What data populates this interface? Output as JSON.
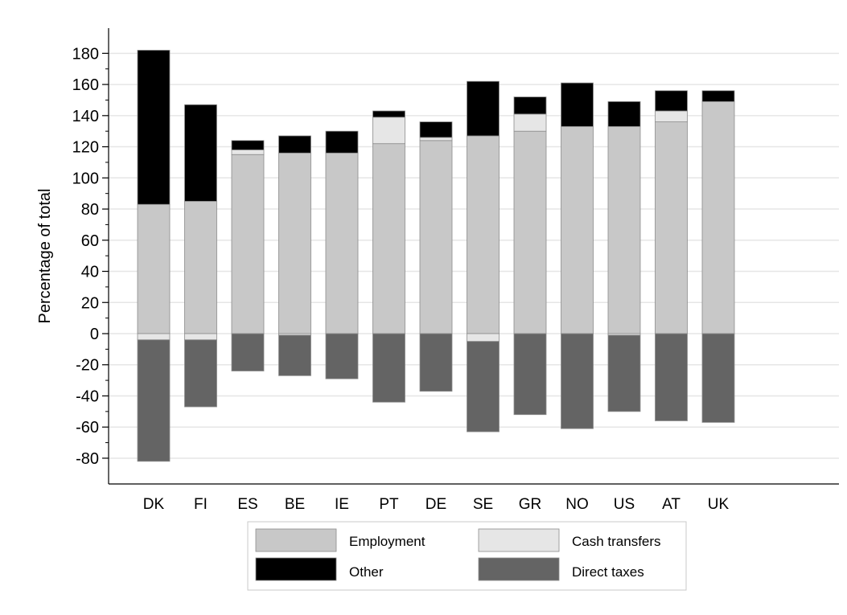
{
  "chart_data": {
    "type": "bar",
    "stacked": true,
    "title": "",
    "xlabel": "",
    "ylabel": "Percentage of total",
    "ylim": [
      -95,
      195
    ],
    "yticks": [
      -80,
      -60,
      -40,
      -20,
      0,
      20,
      40,
      60,
      80,
      100,
      120,
      140,
      160,
      180
    ],
    "grid": true,
    "legend_position": "bottom",
    "categories": [
      "DK",
      "FI",
      "ES",
      "BE",
      "IE",
      "PT",
      "DE",
      "SE",
      "GR",
      "NO",
      "US",
      "AT",
      "UK"
    ],
    "series": [
      {
        "name": "Employment",
        "color": "#c8c8c8",
        "positive": [
          83,
          85,
          115,
          116,
          116,
          122,
          124,
          127,
          130,
          133,
          133,
          136,
          149
        ],
        "negative": [
          0,
          0,
          0,
          0,
          0,
          0,
          0,
          0,
          0,
          0,
          0,
          0,
          0
        ]
      },
      {
        "name": "Cash transfers",
        "color": "#e6e6e6",
        "positive": [
          0,
          0,
          3,
          0,
          0,
          17,
          2,
          0,
          11,
          0,
          0,
          7,
          0
        ],
        "negative": [
          -4,
          -4,
          0,
          -1,
          0,
          0,
          0,
          -5,
          0,
          0,
          -1,
          0,
          0
        ]
      },
      {
        "name": "Other",
        "color": "#000000",
        "positive": [
          99,
          62,
          6,
          11,
          14,
          4,
          10,
          35,
          11,
          28,
          16,
          13,
          7
        ],
        "negative": [
          0,
          0,
          0,
          0,
          0,
          0,
          0,
          0,
          0,
          0,
          0,
          0,
          0
        ]
      },
      {
        "name": "Direct taxes",
        "color": "#646464",
        "positive": [
          0,
          0,
          0,
          0,
          0,
          0,
          0,
          0,
          0,
          0,
          0,
          0,
          0
        ],
        "negative": [
          -78,
          -43,
          -24,
          -26,
          -29,
          -44,
          -37,
          -58,
          -52,
          -61,
          -49,
          -56,
          -57
        ]
      }
    ],
    "legend_order": [
      "Employment",
      "Cash transfers",
      "Other",
      "Direct taxes"
    ]
  }
}
